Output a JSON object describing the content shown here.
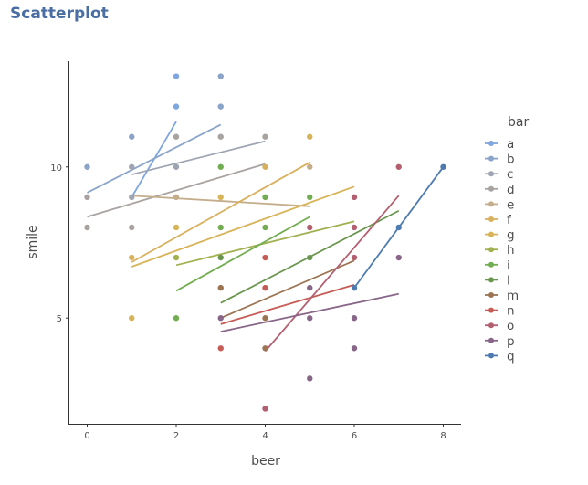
{
  "chart_data": {
    "type": "scatter",
    "title": "Scatterplot",
    "xlabel": "beer",
    "ylabel": "smile",
    "xlim": [
      -0.4,
      8.4
    ],
    "ylim": [
      1.5,
      13.5
    ],
    "xticks": [
      0,
      2,
      4,
      6,
      8
    ],
    "yticks": [
      5,
      10
    ],
    "grid": false,
    "legend": {
      "title": "bar",
      "placement": "right"
    },
    "points": [
      {
        "x": 0,
        "y": 10,
        "g": "b"
      },
      {
        "x": 0,
        "y": 9,
        "g": "d"
      },
      {
        "x": 0,
        "y": 8,
        "g": "d"
      },
      {
        "x": 1,
        "y": 11,
        "g": "b"
      },
      {
        "x": 1,
        "y": 10,
        "g": "c"
      },
      {
        "x": 1,
        "y": 9,
        "g": "c"
      },
      {
        "x": 1,
        "y": 8,
        "g": "d"
      },
      {
        "x": 1,
        "y": 7,
        "g": "f"
      },
      {
        "x": 1,
        "y": 5,
        "g": "g"
      },
      {
        "x": 2,
        "y": 13,
        "g": "a"
      },
      {
        "x": 2,
        "y": 12,
        "g": "a"
      },
      {
        "x": 2,
        "y": 11,
        "g": "d"
      },
      {
        "x": 2,
        "y": 10,
        "g": "c"
      },
      {
        "x": 2,
        "y": 9,
        "g": "e"
      },
      {
        "x": 2,
        "y": 8,
        "g": "g"
      },
      {
        "x": 2,
        "y": 7,
        "g": "h"
      },
      {
        "x": 2,
        "y": 5,
        "g": "i"
      },
      {
        "x": 3,
        "y": 13,
        "g": "b"
      },
      {
        "x": 3,
        "y": 12,
        "g": "b"
      },
      {
        "x": 3,
        "y": 11,
        "g": "d"
      },
      {
        "x": 3,
        "y": 10,
        "g": "i"
      },
      {
        "x": 3,
        "y": 9,
        "g": "g"
      },
      {
        "x": 3,
        "y": 8,
        "g": "i"
      },
      {
        "x": 3,
        "y": 7,
        "g": "l"
      },
      {
        "x": 3,
        "y": 6,
        "g": "m"
      },
      {
        "x": 3,
        "y": 5,
        "g": "p"
      },
      {
        "x": 3,
        "y": 4,
        "g": "n"
      },
      {
        "x": 4,
        "y": 11,
        "g": "d"
      },
      {
        "x": 4,
        "y": 10,
        "g": "f"
      },
      {
        "x": 4,
        "y": 9,
        "g": "i"
      },
      {
        "x": 4,
        "y": 8,
        "g": "i"
      },
      {
        "x": 4,
        "y": 7,
        "g": "n"
      },
      {
        "x": 4,
        "y": 6,
        "g": "n"
      },
      {
        "x": 4,
        "y": 5,
        "g": "m"
      },
      {
        "x": 4,
        "y": 4,
        "g": "m"
      },
      {
        "x": 4,
        "y": 2,
        "g": "o"
      },
      {
        "x": 5,
        "y": 11,
        "g": "g"
      },
      {
        "x": 5,
        "y": 10,
        "g": "e"
      },
      {
        "x": 5,
        "y": 9,
        "g": "i"
      },
      {
        "x": 5,
        "y": 8,
        "g": "o"
      },
      {
        "x": 5,
        "y": 7,
        "g": "l"
      },
      {
        "x": 5,
        "y": 6,
        "g": "p"
      },
      {
        "x": 5,
        "y": 5,
        "g": "p"
      },
      {
        "x": 5,
        "y": 3,
        "g": "p"
      },
      {
        "x": 6,
        "y": 9,
        "g": "o"
      },
      {
        "x": 6,
        "y": 8,
        "g": "o"
      },
      {
        "x": 6,
        "y": 7,
        "g": "o"
      },
      {
        "x": 6,
        "y": 6,
        "g": "q"
      },
      {
        "x": 6,
        "y": 5,
        "g": "p"
      },
      {
        "x": 6,
        "y": 4,
        "g": "p"
      },
      {
        "x": 7,
        "y": 10,
        "g": "o"
      },
      {
        "x": 7,
        "y": 8,
        "g": "q"
      },
      {
        "x": 7,
        "y": 7,
        "g": "p"
      },
      {
        "x": 8,
        "y": 10,
        "g": "q"
      }
    ],
    "series": [
      {
        "name": "a",
        "color": "#7fa6df",
        "line": [
          [
            1,
            9.0
          ],
          [
            2,
            11.5
          ]
        ]
      },
      {
        "name": "b",
        "color": "#8aa4c9",
        "line": [
          [
            0,
            9.15
          ],
          [
            3,
            11.4
          ]
        ]
      },
      {
        "name": "c",
        "color": "#9ea4b2",
        "line": [
          [
            1,
            9.75
          ],
          [
            4,
            10.85
          ]
        ]
      },
      {
        "name": "d",
        "color": "#a8a3a0",
        "line": [
          [
            0,
            8.35
          ],
          [
            4,
            10.1
          ]
        ]
      },
      {
        "name": "e",
        "color": "#c4ad8a",
        "line": [
          [
            1,
            9.05
          ],
          [
            5,
            8.7
          ]
        ]
      },
      {
        "name": "f",
        "color": "#d9b15e",
        "line": [
          [
            1,
            6.85
          ],
          [
            5,
            10.15
          ]
        ]
      },
      {
        "name": "g",
        "color": "#d8b459",
        "line": [
          [
            1,
            6.7
          ],
          [
            6,
            9.35
          ]
        ]
      },
      {
        "name": "h",
        "color": "#a2b04f",
        "line": [
          [
            2,
            6.75
          ],
          [
            6,
            8.2
          ]
        ]
      },
      {
        "name": "i",
        "color": "#73ad51",
        "line": [
          [
            2,
            5.9
          ],
          [
            5,
            8.35
          ]
        ]
      },
      {
        "name": "l",
        "color": "#6b9650",
        "line": [
          [
            3,
            5.5
          ],
          [
            7,
            8.55
          ]
        ]
      },
      {
        "name": "m",
        "color": "#9c7452",
        "line": [
          [
            3,
            5.0
          ],
          [
            6,
            6.9
          ]
        ]
      },
      {
        "name": "n",
        "color": "#c75b55",
        "line": [
          [
            3,
            4.8
          ],
          [
            6,
            6.1
          ]
        ]
      },
      {
        "name": "o",
        "color": "#b45f70",
        "line": [
          [
            4,
            3.9
          ],
          [
            7,
            9.05
          ]
        ]
      },
      {
        "name": "p",
        "color": "#876688",
        "line": [
          [
            3,
            4.55
          ],
          [
            7,
            5.8
          ]
        ]
      },
      {
        "name": "q",
        "color": "#4d7bb0",
        "line": [
          [
            6,
            6.0
          ],
          [
            8,
            10.0
          ]
        ]
      }
    ]
  }
}
